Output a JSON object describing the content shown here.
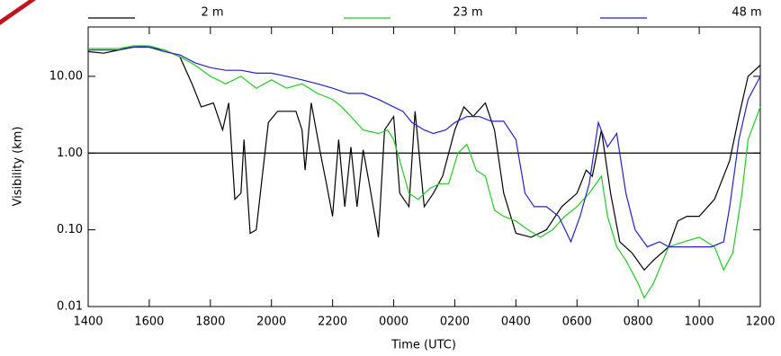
{
  "chart_data": {
    "type": "line",
    "xlabel": "Time (UTC)",
    "ylabel": "Visibility (km)",
    "ylog": true,
    "xlim": [
      14,
      36
    ],
    "ylim": [
      0.01,
      44
    ],
    "xticks": [
      {
        "value": 14,
        "label": "1400"
      },
      {
        "value": 16,
        "label": "1600"
      },
      {
        "value": 18,
        "label": "1800"
      },
      {
        "value": 20,
        "label": "2000"
      },
      {
        "value": 22,
        "label": "2200"
      },
      {
        "value": 24,
        "label": "0000"
      },
      {
        "value": 26,
        "label": "0200"
      },
      {
        "value": 28,
        "label": "0400"
      },
      {
        "value": 30,
        "label": "0600"
      },
      {
        "value": 32,
        "label": "0800"
      },
      {
        "value": 34,
        "label": "1000"
      },
      {
        "value": 36,
        "label": "1200"
      }
    ],
    "yticks": [
      {
        "value": 0.01,
        "label": "0.01"
      },
      {
        "value": 0.1,
        "label": "0.10"
      },
      {
        "value": 1,
        "label": "1.00"
      },
      {
        "value": 10,
        "label": "10.00"
      }
    ],
    "reference_line": 1,
    "legend": "top",
    "series": [
      {
        "name": "2 m",
        "color": "#000000",
        "x": [
          14,
          14.5,
          15,
          15.5,
          16,
          16.5,
          17,
          17.4,
          17.7,
          18.1,
          18.4,
          18.6,
          18.8,
          19.0,
          19.1,
          19.3,
          19.5,
          19.7,
          19.9,
          20.2,
          20.5,
          20.8,
          21,
          21.1,
          21.3,
          21.6,
          21.8,
          22,
          22.2,
          22.4,
          22.6,
          22.8,
          23.0,
          23.2,
          23.5,
          23.7,
          24.0,
          24.2,
          24.5,
          24.7,
          25,
          25.3,
          25.6,
          26,
          26.3,
          26.6,
          27,
          27.3,
          27.6,
          28,
          28.5,
          29,
          29.5,
          30,
          30.3,
          30.5,
          30.8,
          31.1,
          31.4,
          31.8,
          32.2,
          32.5,
          33,
          33.3,
          33.6,
          34,
          34.5,
          35,
          35.3,
          35.6,
          36
        ],
        "values": [
          21,
          20,
          22,
          25,
          24,
          22,
          18,
          8,
          4,
          4.5,
          2,
          4.5,
          0.25,
          0.3,
          1.5,
          0.09,
          0.1,
          0.5,
          2.5,
          3.5,
          3.5,
          3.5,
          2,
          0.6,
          4.5,
          1,
          0.4,
          0.15,
          1.5,
          0.2,
          1.2,
          0.2,
          1.1,
          0.4,
          0.08,
          2,
          3,
          0.3,
          0.2,
          3.5,
          0.2,
          0.3,
          0.5,
          2,
          4,
          3,
          4.5,
          2,
          0.3,
          0.09,
          0.08,
          0.1,
          0.2,
          0.3,
          0.6,
          0.5,
          2,
          0.3,
          0.07,
          0.05,
          0.03,
          0.04,
          0.06,
          0.13,
          0.15,
          0.15,
          0.25,
          0.8,
          3,
          10,
          14
        ]
      },
      {
        "name": "23 m",
        "color": "#22cc22",
        "x": [
          14,
          15,
          15.5,
          16,
          16.5,
          17,
          17.5,
          18,
          18.5,
          19,
          19.5,
          20,
          20.5,
          21,
          21.5,
          22,
          22.3,
          22.6,
          23,
          23.5,
          23.8,
          24,
          24.2,
          24.5,
          24.8,
          25.2,
          25.5,
          25.8,
          26.1,
          26.4,
          26.7,
          27,
          27.3,
          27.6,
          28,
          28.4,
          28.8,
          29.2,
          29.6,
          30,
          30.4,
          30.8,
          31,
          31.3,
          31.6,
          32,
          32.2,
          32.5,
          33,
          33.5,
          34,
          34.5,
          34.8,
          35.1,
          35.4,
          35.6,
          36
        ],
        "values": [
          23,
          23,
          25,
          25,
          22,
          18,
          14,
          10,
          8,
          10,
          7,
          9,
          7,
          8,
          6,
          5,
          4,
          3,
          2,
          1.8,
          2,
          1.5,
          0.8,
          0.3,
          0.25,
          0.35,
          0.4,
          0.4,
          1,
          1.3,
          0.6,
          0.5,
          0.18,
          0.15,
          0.13,
          0.1,
          0.08,
          0.1,
          0.15,
          0.2,
          0.3,
          0.5,
          0.15,
          0.06,
          0.04,
          0.02,
          0.013,
          0.02,
          0.06,
          0.07,
          0.08,
          0.06,
          0.03,
          0.05,
          0.3,
          1.5,
          4
        ]
      },
      {
        "name": "48 m",
        "color": "#2222cc",
        "x": [
          14,
          15,
          15.5,
          16,
          16.5,
          17,
          17.5,
          18,
          18.5,
          19,
          19.5,
          20,
          20.5,
          21,
          21.5,
          22,
          22.5,
          23,
          23.5,
          24,
          24.3,
          24.6,
          25,
          25.3,
          25.7,
          26,
          26.4,
          26.8,
          27.2,
          27.6,
          28,
          28.3,
          28.6,
          29,
          29.4,
          29.8,
          30.1,
          30.4,
          30.7,
          31,
          31.3,
          31.6,
          31.9,
          32.3,
          32.7,
          33,
          33.5,
          34,
          34.4,
          34.8,
          35,
          35.3,
          35.6,
          36
        ],
        "values": [
          22,
          22,
          24,
          24,
          21,
          19,
          15,
          13,
          12,
          12,
          11,
          11,
          10,
          9,
          8,
          7,
          6,
          6,
          5,
          4,
          3.5,
          2.5,
          2,
          1.8,
          2,
          2.5,
          3,
          3,
          2.6,
          2.6,
          1.5,
          0.3,
          0.2,
          0.2,
          0.15,
          0.07,
          0.15,
          0.4,
          2.5,
          1.2,
          1.8,
          0.3,
          0.1,
          0.06,
          0.07,
          0.06,
          0.06,
          0.06,
          0.06,
          0.07,
          0.2,
          1.5,
          5,
          10
        ]
      }
    ]
  }
}
